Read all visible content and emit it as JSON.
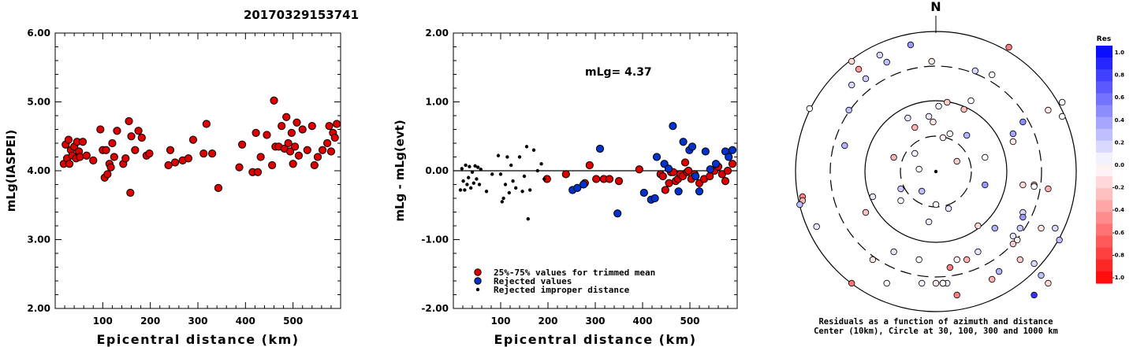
{
  "title": "20170329153741",
  "chart_data": [
    {
      "type": "scatter",
      "ylabel": "mLg(IASPEI)",
      "xlabel": "Epicentral distance (km)",
      "xlim": [
        0,
        600
      ],
      "ylim": [
        2.0,
        6.0
      ],
      "xticks": [
        "100",
        "200",
        "300",
        "400",
        "500"
      ],
      "yticks": [
        "2.00",
        "3.00",
        "4.00",
        "5.00",
        "6.00"
      ],
      "points": [
        [
          18,
          4.1
        ],
        [
          22,
          4.38
        ],
        [
          25,
          4.18
        ],
        [
          28,
          4.45
        ],
        [
          30,
          4.1
        ],
        [
          33,
          4.3
        ],
        [
          36,
          4.22
        ],
        [
          40,
          4.35
        ],
        [
          44,
          4.18
        ],
        [
          46,
          4.42
        ],
        [
          50,
          4.28
        ],
        [
          52,
          4.2
        ],
        [
          58,
          4.42
        ],
        [
          66,
          4.22
        ],
        [
          80,
          4.15
        ],
        [
          95,
          4.6
        ],
        [
          100,
          4.3
        ],
        [
          104,
          3.9
        ],
        [
          107,
          4.3
        ],
        [
          110,
          3.95
        ],
        [
          114,
          4.1
        ],
        [
          117,
          4.05
        ],
        [
          120,
          4.4
        ],
        [
          124,
          4.2
        ],
        [
          130,
          4.58
        ],
        [
          143,
          4.1
        ],
        [
          148,
          4.18
        ],
        [
          155,
          4.72
        ],
        [
          158,
          3.68
        ],
        [
          160,
          4.5
        ],
        [
          168,
          4.3
        ],
        [
          175,
          4.58
        ],
        [
          182,
          4.48
        ],
        [
          192,
          4.22
        ],
        [
          198,
          4.25
        ],
        [
          238,
          4.08
        ],
        [
          242,
          4.3
        ],
        [
          252,
          4.12
        ],
        [
          268,
          4.15
        ],
        [
          280,
          4.18
        ],
        [
          290,
          4.45
        ],
        [
          312,
          4.25
        ],
        [
          318,
          4.68
        ],
        [
          330,
          4.25
        ],
        [
          343,
          3.75
        ],
        [
          387,
          4.05
        ],
        [
          393,
          4.38
        ],
        [
          415,
          3.98
        ],
        [
          422,
          4.55
        ],
        [
          426,
          3.98
        ],
        [
          432,
          4.2
        ],
        [
          445,
          4.52
        ],
        [
          456,
          4.08
        ],
        [
          460,
          5.02
        ],
        [
          463,
          4.35
        ],
        [
          470,
          4.35
        ],
        [
          476,
          4.65
        ],
        [
          482,
          4.32
        ],
        [
          486,
          4.78
        ],
        [
          490,
          4.4
        ],
        [
          494,
          4.28
        ],
        [
          497,
          4.55
        ],
        [
          500,
          4.1
        ],
        [
          504,
          4.35
        ],
        [
          508,
          4.7
        ],
        [
          512,
          4.22
        ],
        [
          520,
          4.6
        ],
        [
          530,
          4.3
        ],
        [
          540,
          4.65
        ],
        [
          545,
          4.08
        ],
        [
          552,
          4.2
        ],
        [
          562,
          4.3
        ],
        [
          572,
          4.4
        ],
        [
          576,
          4.65
        ],
        [
          580,
          4.28
        ],
        [
          584,
          4.55
        ],
        [
          588,
          4.48
        ],
        [
          592,
          4.68
        ]
      ]
    },
    {
      "type": "scatter",
      "ylabel": "mLg - mLg(evt)",
      "xlabel": "Epicentral distance (km)",
      "xlim": [
        0,
        600
      ],
      "ylim": [
        -2.0,
        2.0
      ],
      "xticks": [
        "100",
        "200",
        "300",
        "400",
        "500"
      ],
      "yticks": [
        "-2.00",
        "-1.00",
        "0.00",
        "1.00",
        "2.00"
      ],
      "annotation": "mLg= 4.37",
      "legend": [
        {
          "label": "25%-75% values for trimmed mean",
          "color": "#dd0000"
        },
        {
          "label": "Rejected values",
          "color": "#0033cc"
        },
        {
          "label": "Rejected improper distance",
          "color": "#000000"
        }
      ],
      "series": [
        {
          "legend_index": 0,
          "points": [
            [
              198,
              -0.12
            ],
            [
              238,
              -0.05
            ],
            [
              278,
              -0.18
            ],
            [
              288,
              0.08
            ],
            [
              302,
              -0.12
            ],
            [
              318,
              -0.12
            ],
            [
              330,
              -0.12
            ],
            [
              350,
              -0.15
            ],
            [
              393,
              0.02
            ],
            [
              438,
              -0.05
            ],
            [
              443,
              -0.08
            ],
            [
              448,
              -0.28
            ],
            [
              456,
              -0.18
            ],
            [
              460,
              -0.02
            ],
            [
              465,
              -0.02
            ],
            [
              470,
              -0.15
            ],
            [
              475,
              -0.12
            ],
            [
              480,
              -0.05
            ],
            [
              485,
              -0.08
            ],
            [
              490,
              0.12
            ],
            [
              494,
              -0.02
            ],
            [
              497,
              0.0
            ],
            [
              503,
              -0.12
            ],
            [
              510,
              -0.05
            ],
            [
              520,
              -0.18
            ],
            [
              530,
              -0.12
            ],
            [
              542,
              -0.08
            ],
            [
              552,
              0.0
            ],
            [
              560,
              0.06
            ],
            [
              568,
              -0.05
            ],
            [
              575,
              -0.15
            ],
            [
              580,
              0.0
            ],
            [
              590,
              0.1
            ]
          ]
        },
        {
          "legend_index": 1,
          "points": [
            [
              252,
              -0.28
            ],
            [
              262,
              -0.25
            ],
            [
              275,
              -0.2
            ],
            [
              310,
              0.32
            ],
            [
              347,
              -0.62
            ],
            [
              403,
              -0.32
            ],
            [
              418,
              -0.42
            ],
            [
              426,
              -0.4
            ],
            [
              430,
              0.2
            ],
            [
              446,
              0.1
            ],
            [
              455,
              0.03
            ],
            [
              464,
              0.65
            ],
            [
              476,
              -0.3
            ],
            [
              486,
              0.42
            ],
            [
              499,
              0.3
            ],
            [
              505,
              0.35
            ],
            [
              512,
              -0.08
            ],
            [
              520,
              -0.3
            ],
            [
              533,
              0.28
            ],
            [
              543,
              0.02
            ],
            [
              555,
              0.1
            ],
            [
              575,
              0.28
            ],
            [
              582,
              0.2
            ],
            [
              590,
              0.3
            ]
          ]
        },
        {
          "legend_index": 2,
          "points": [
            [
              15,
              -0.28
            ],
            [
              18,
              0.03
            ],
            [
              21,
              -0.15
            ],
            [
              24,
              -0.28
            ],
            [
              26,
              0.08
            ],
            [
              29,
              -0.2
            ],
            [
              32,
              -0.1
            ],
            [
              34,
              0.06
            ],
            [
              37,
              -0.25
            ],
            [
              40,
              -0.02
            ],
            [
              43,
              -0.18
            ],
            [
              46,
              0.07
            ],
            [
              49,
              -0.12
            ],
            [
              52,
              0.05
            ],
            [
              55,
              -0.2
            ],
            [
              58,
              0.02
            ],
            [
              70,
              -0.3
            ],
            [
              82,
              -0.05
            ],
            [
              95,
              0.22
            ],
            [
              100,
              -0.05
            ],
            [
              103,
              -0.45
            ],
            [
              106,
              -0.4
            ],
            [
              110,
              -0.2
            ],
            [
              114,
              0.2
            ],
            [
              118,
              -0.32
            ],
            [
              122,
              0.08
            ],
            [
              126,
              -0.15
            ],
            [
              132,
              -0.25
            ],
            [
              140,
              0.2
            ],
            [
              146,
              -0.3
            ],
            [
              150,
              -0.08
            ],
            [
              155,
              0.35
            ],
            [
              158,
              -0.7
            ],
            [
              162,
              -0.28
            ],
            [
              170,
              0.3
            ],
            [
              178,
              0.0
            ],
            [
              186,
              0.1
            ],
            [
              192,
              -0.12
            ]
          ]
        }
      ]
    },
    {
      "type": "scatter",
      "subtype": "polar",
      "north_label": "N",
      "caption_lines": [
        "Residuals as a function of azimuth and distance",
        "Center (10km), Circle at 30, 100, 300 and 1000 km"
      ],
      "colorbar": {
        "title": "Res",
        "ticks": [
          "1.0",
          "0.8",
          "0.6",
          "0.4",
          "0.2",
          "0.0",
          "-0.2",
          "-0.4",
          "-0.6",
          "-0.8",
          "-1.0"
        ],
        "range": [
          -1.0,
          1.0
        ],
        "low_color": "#ff0000",
        "mid_color": "#ffffff",
        "high_color": "#0000ff"
      },
      "points": [
        [
          0.02,
          135,
          0.05
        ],
        [
          -0.02,
          155,
          -0.1
        ],
        [
          0.1,
          170,
          0.0
        ],
        [
          0.08,
          130,
          -0.2
        ],
        [
          -0.15,
          162,
          -0.3
        ],
        [
          -0.05,
          148,
          0.1
        ],
        [
          0.05,
          175,
          -0.05
        ],
        [
          0.2,
          139,
          -0.25
        ],
        [
          0.25,
          128,
          0.0
        ],
        [
          -0.2,
          150,
          0.1
        ],
        [
          0.22,
          172,
          0.3
        ],
        [
          -0.12,
          215,
          0.0
        ],
        [
          0.15,
          205,
          -0.2
        ],
        [
          -0.1,
          243,
          0.25
        ],
        [
          0.09,
          265,
          0.1
        ],
        [
          -0.05,
          282,
          0.05
        ],
        [
          0.3,
          287,
          -0.15
        ],
        [
          -0.15,
          195,
          0.05
        ],
        [
          0.35,
          200,
          0.0
        ],
        [
          -0.3,
          200,
          -0.3
        ],
        [
          -0.25,
          240,
          0.2
        ],
        [
          0.0,
          260,
          0.0
        ],
        [
          -0.18,
          57,
          0.4
        ],
        [
          -0.4,
          70,
          0.15
        ],
        [
          -0.35,
          79,
          0.25
        ],
        [
          0.28,
          90,
          0.15
        ],
        [
          0.4,
          95,
          0.0
        ],
        [
          -0.6,
          78,
          -0.15
        ],
        [
          -0.55,
          88,
          -0.4
        ],
        [
          0.52,
          60,
          -0.5
        ],
        [
          -0.03,
          78,
          -0.1
        ],
        [
          -0.5,
          100,
          0.2
        ],
        [
          -0.6,
          108,
          0.15
        ],
        [
          -0.62,
          140,
          0.25
        ],
        [
          -0.65,
          185,
          0.3
        ],
        [
          0.35,
          235,
          0.4
        ],
        [
          0.42,
          290,
          0.3
        ],
        [
          0.55,
          170,
          0.35
        ],
        [
          0.62,
          155,
          0.45
        ],
        [
          0.55,
          180,
          -0.1
        ],
        [
          0.62,
          235,
          -0.15
        ],
        [
          0.7,
          235,
          -0.3
        ],
        [
          0.7,
          237,
          0.0
        ],
        [
          0.8,
          240,
          -0.3
        ],
        [
          0.55,
          300,
          0.1
        ],
        [
          0.58,
          305,
          -0.05
        ],
        [
          0.6,
          330,
          -0.2
        ],
        [
          0.7,
          335,
          0.15
        ],
        [
          0.75,
          350,
          0.25
        ],
        [
          0.8,
          360,
          -0.15
        ],
        [
          0.08,
          360,
          0.05
        ],
        [
          0.45,
          345,
          0.3
        ],
        [
          0.15,
          330,
          -0.05
        ],
        [
          -0.35,
          360,
          0.0
        ],
        [
          -0.1,
          360,
          0.05
        ],
        [
          0.0,
          360,
          -0.1
        ],
        [
          -0.25,
          255,
          0.0
        ],
        [
          -0.45,
          250,
          0.1
        ],
        [
          -0.3,
          320,
          0.1
        ],
        [
          -0.12,
          330,
          0.0
        ],
        [
          -0.45,
          330,
          -0.1
        ],
        [
          0.22,
          330,
          -0.3
        ],
        [
          0.1,
          340,
          -0.5
        ],
        [
          0.05,
          360,
          -0.3
        ],
        [
          0.05,
          360,
          -0.2
        ],
        [
          0.05,
          360,
          0.0
        ],
        [
          -0.5,
          270,
          -0.25
        ],
        [
          0.9,
          130,
          0.0
        ],
        [
          -0.9,
          138,
          0.0
        ],
        [
          0.8,
          140,
          -0.1
        ],
        [
          0.9,
          148,
          0.0
        ],
        [
          0.62,
          270,
          0.15
        ],
        [
          0.62,
          276,
          0.4
        ],
        [
          0.75,
          290,
          -0.1
        ],
        [
          0.85,
          290,
          0.15
        ],
        [
          0.88,
          305,
          0.25
        ],
        [
          -0.95,
          250,
          -0.5
        ],
        [
          -0.95,
          255,
          -0.3
        ],
        [
          -0.97,
          260,
          0.25
        ],
        [
          -0.85,
          288,
          0.1
        ],
        [
          0.6,
          290,
          0.2
        ],
        [
          0.55,
          310,
          -0.2
        ],
        [
          0.3,
          320,
          0.1
        ],
        [
          0.4,
          355,
          -0.3
        ],
        [
          -0.6,
          360,
          -0.55
        ],
        [
          0.15,
          375,
          -0.5
        ],
        [
          0.7,
          375,
          0.8
        ]
      ]
    }
  ]
}
